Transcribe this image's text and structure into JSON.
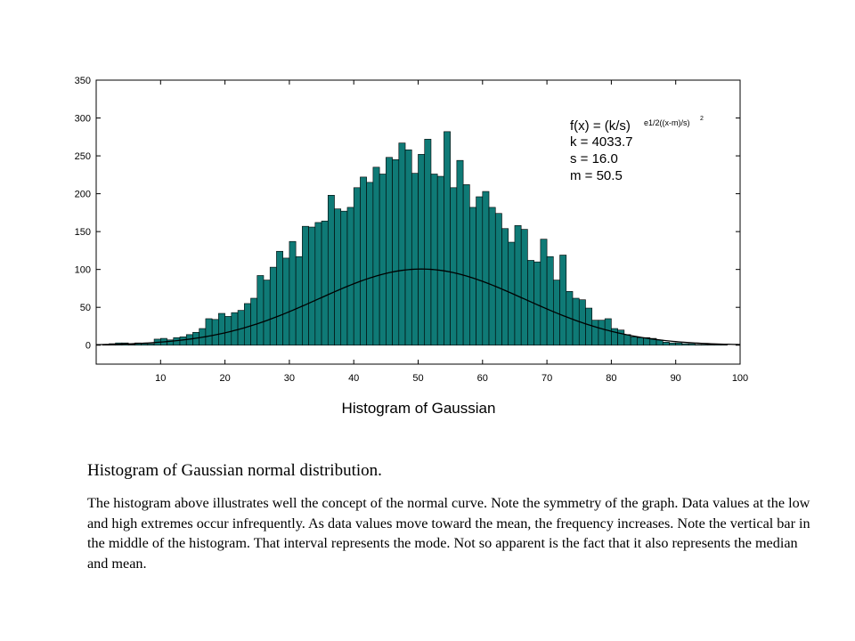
{
  "chart_data": {
    "type": "bar",
    "title": "Histogram of Gaussian",
    "xlabel": "",
    "ylabel": "",
    "xlim": [
      0,
      100
    ],
    "ylim": [
      -25,
      350
    ],
    "xticks": [
      10,
      20,
      30,
      40,
      50,
      60,
      70,
      80,
      90,
      100
    ],
    "yticks": [
      0,
      50,
      100,
      150,
      200,
      250,
      300,
      350
    ],
    "bar_color": "#0f7a76",
    "curve_color": "#000000",
    "grid": false,
    "bin_width": 1,
    "bins_start": 1,
    "values": [
      1,
      2,
      3,
      3,
      1,
      3,
      2,
      2,
      8,
      9,
      7,
      10,
      11,
      14,
      17,
      22,
      35,
      34,
      42,
      38,
      43,
      46,
      55,
      62,
      92,
      86,
      103,
      124,
      115,
      137,
      117,
      157,
      156,
      162,
      164,
      198,
      180,
      177,
      182,
      208,
      222,
      215,
      235,
      226,
      248,
      245,
      267,
      258,
      227,
      252,
      272,
      226,
      223,
      282,
      208,
      244,
      212,
      182,
      196,
      203,
      182,
      174,
      154,
      136,
      158,
      153,
      112,
      110,
      140,
      117,
      86,
      119,
      71,
      62,
      60,
      49,
      33,
      33,
      35,
      22,
      20,
      14,
      11,
      10,
      10,
      9,
      7,
      4,
      3,
      3,
      2,
      2,
      1,
      1,
      1,
      1,
      1
    ],
    "fit": {
      "k": 4033.7,
      "s": 16.0,
      "m": 50.5
    },
    "annotation": {
      "lines": [
        "f(x)  =  (k/s)",
        "k  =  4033.7",
        "s  =  16.0",
        "m   =  50.5"
      ],
      "superscript": "e1/2((x-m)/s)",
      "superscript2": "2"
    }
  },
  "caption": {
    "heading": "Histogram of Gaussian normal distribution.",
    "body": "The histogram above illustrates well the concept of the normal curve. Note the symmetry of the graph. Data values at the low and high extremes occur infrequently. As data values move toward the mean, the frequency increases.  Note the vertical bar in the middle of the histogram. That interval represents the mode. Not so apparent is the fact that it also represents the median and mean."
  }
}
